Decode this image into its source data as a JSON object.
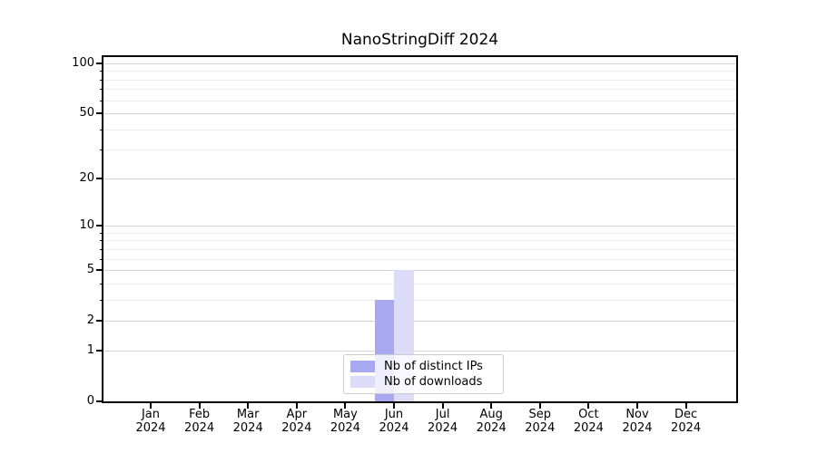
{
  "chart": {
    "background": "#ffffff",
    "axis_color": "#000000",
    "grid_major_color": "#d4d4d4",
    "grid_minor_color": "#ececec"
  },
  "chart_data": {
    "type": "bar",
    "title": "NanoStringDiff 2024",
    "categories": [
      "Jan 2024",
      "Feb 2024",
      "Mar 2024",
      "Apr 2024",
      "May 2024",
      "Jun 2024",
      "Jul 2024",
      "Aug 2024",
      "Sep 2024",
      "Oct 2024",
      "Nov 2024",
      "Dec 2024"
    ],
    "series": [
      {
        "key": "distinct-ips",
        "name": "Nb of distinct IPs",
        "color": "#a9a9f1",
        "values": [
          0,
          0,
          0,
          0,
          0,
          3,
          0,
          0,
          0,
          0,
          0,
          0
        ]
      },
      {
        "key": "downloads",
        "name": "Nb of downloads",
        "color": "#dcdcf8",
        "values": [
          0,
          0,
          0,
          0,
          0,
          5,
          0,
          0,
          0,
          0,
          0,
          0
        ]
      }
    ],
    "xlabel": "",
    "ylabel": "",
    "y_scale": "log1p",
    "y_ticks": [
      0,
      1,
      2,
      5,
      10,
      20,
      50,
      100
    ],
    "y_minor_ticks": [
      3,
      4,
      6,
      7,
      8,
      9,
      30,
      40,
      60,
      70,
      80,
      90
    ],
    "ylim": [
      0,
      109
    ],
    "grid": "horizontal-only",
    "legend_position": "lower-center-inside"
  }
}
